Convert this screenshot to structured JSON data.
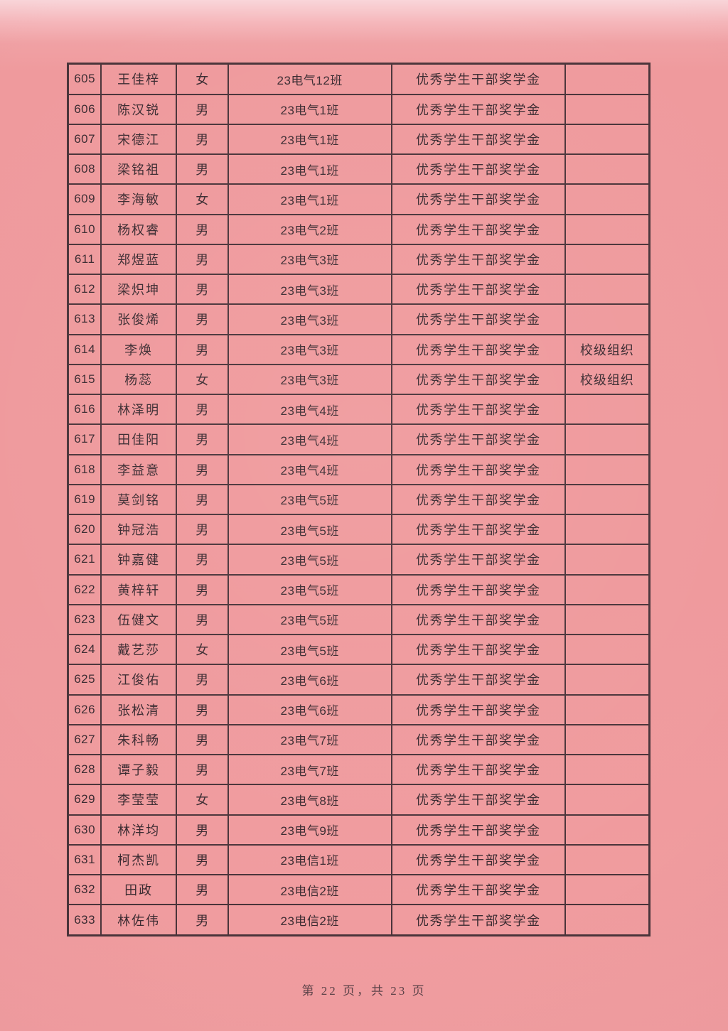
{
  "document": {
    "kind": "scanned scholarship roster page (pink paper)",
    "footer": "第 22 页，共 23 页"
  },
  "colors": {
    "paper": "#ef9a9d",
    "paper_top_light": "#f8cdd2",
    "ink": "#3b2b31",
    "table_line": "#4a343a"
  },
  "table": {
    "column_semantics": [
      "serial-number",
      "name",
      "gender",
      "class",
      "award",
      "note"
    ],
    "rows": [
      [
        "605",
        "王佳梓",
        "女",
        "23电气12班",
        "优秀学生干部奖学金",
        ""
      ],
      [
        "606",
        "陈汉锐",
        "男",
        "23电气1班",
        "优秀学生干部奖学金",
        ""
      ],
      [
        "607",
        "宋德江",
        "男",
        "23电气1班",
        "优秀学生干部奖学金",
        ""
      ],
      [
        "608",
        "梁铭祖",
        "男",
        "23电气1班",
        "优秀学生干部奖学金",
        ""
      ],
      [
        "609",
        "李海敏",
        "女",
        "23电气1班",
        "优秀学生干部奖学金",
        ""
      ],
      [
        "610",
        "杨权睿",
        "男",
        "23电气2班",
        "优秀学生干部奖学金",
        ""
      ],
      [
        "611",
        "郑煜蓝",
        "男",
        "23电气3班",
        "优秀学生干部奖学金",
        ""
      ],
      [
        "612",
        "梁炽坤",
        "男",
        "23电气3班",
        "优秀学生干部奖学金",
        ""
      ],
      [
        "613",
        "张俊烯",
        "男",
        "23电气3班",
        "优秀学生干部奖学金",
        ""
      ],
      [
        "614",
        "李焕",
        "男",
        "23电气3班",
        "优秀学生干部奖学金",
        "校级组织"
      ],
      [
        "615",
        "杨蕊",
        "女",
        "23电气3班",
        "优秀学生干部奖学金",
        "校级组织"
      ],
      [
        "616",
        "林泽明",
        "男",
        "23电气4班",
        "优秀学生干部奖学金",
        ""
      ],
      [
        "617",
        "田佳阳",
        "男",
        "23电气4班",
        "优秀学生干部奖学金",
        ""
      ],
      [
        "618",
        "李益意",
        "男",
        "23电气4班",
        "优秀学生干部奖学金",
        ""
      ],
      [
        "619",
        "莫剑铭",
        "男",
        "23电气5班",
        "优秀学生干部奖学金",
        ""
      ],
      [
        "620",
        "钟冠浩",
        "男",
        "23电气5班",
        "优秀学生干部奖学金",
        ""
      ],
      [
        "621",
        "钟嘉健",
        "男",
        "23电气5班",
        "优秀学生干部奖学金",
        ""
      ],
      [
        "622",
        "黄梓轩",
        "男",
        "23电气5班",
        "优秀学生干部奖学金",
        ""
      ],
      [
        "623",
        "伍健文",
        "男",
        "23电气5班",
        "优秀学生干部奖学金",
        ""
      ],
      [
        "624",
        "戴艺莎",
        "女",
        "23电气5班",
        "优秀学生干部奖学金",
        ""
      ],
      [
        "625",
        "江俊佑",
        "男",
        "23电气6班",
        "优秀学生干部奖学金",
        ""
      ],
      [
        "626",
        "张松清",
        "男",
        "23电气6班",
        "优秀学生干部奖学金",
        ""
      ],
      [
        "627",
        "朱科畅",
        "男",
        "23电气7班",
        "优秀学生干部奖学金",
        ""
      ],
      [
        "628",
        "谭子毅",
        "男",
        "23电气7班",
        "优秀学生干部奖学金",
        ""
      ],
      [
        "629",
        "李莹莹",
        "女",
        "23电气8班",
        "优秀学生干部奖学金",
        ""
      ],
      [
        "630",
        "林洋均",
        "男",
        "23电气9班",
        "优秀学生干部奖学金",
        ""
      ],
      [
        "631",
        "柯杰凯",
        "男",
        "23电信1班",
        "优秀学生干部奖学金",
        ""
      ],
      [
        "632",
        "田政",
        "男",
        "23电信2班",
        "优秀学生干部奖学金",
        ""
      ],
      [
        "633",
        "林佐伟",
        "男",
        "23电信2班",
        "优秀学生干部奖学金",
        ""
      ]
    ]
  }
}
